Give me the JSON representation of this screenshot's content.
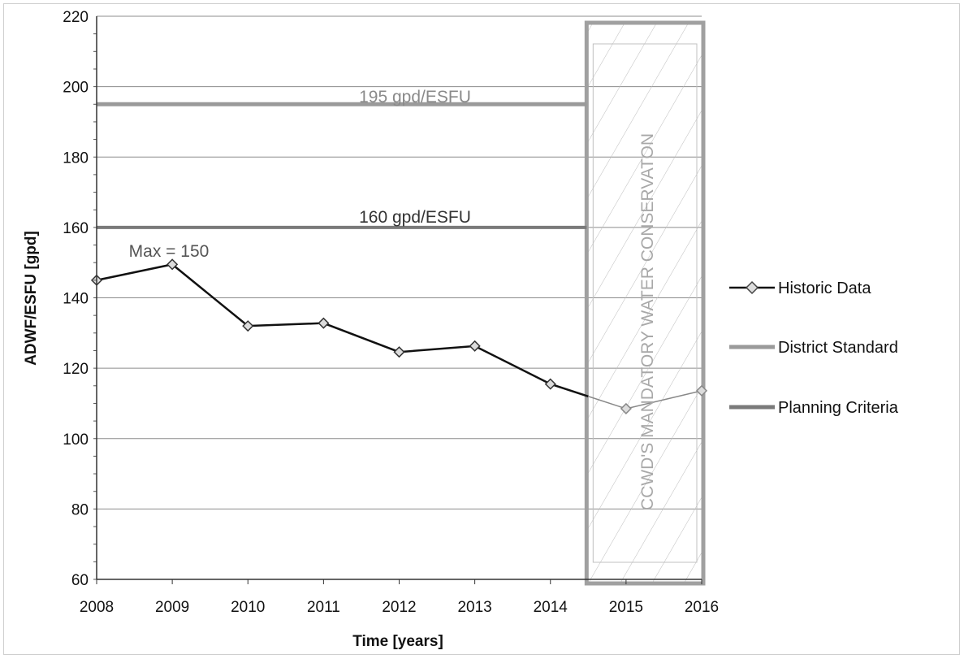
{
  "chart_data": {
    "type": "line",
    "title": "",
    "xlabel": "Time [years]",
    "ylabel": "ADWF/ESFU [gpd]",
    "x": [
      2008,
      2009,
      2010,
      2011,
      2012,
      2013,
      2014,
      2015,
      2016
    ],
    "x_ticks": [
      "2008",
      "2009",
      "2010",
      "2011",
      "2012",
      "2013",
      "2014",
      "2015",
      "2016"
    ],
    "ylim": [
      60,
      220
    ],
    "y_ticks": [
      "60",
      "80",
      "100",
      "120",
      "140",
      "160",
      "180",
      "200",
      "220"
    ],
    "grid": "horizontal",
    "legend_placement": "right",
    "series": [
      {
        "name": "Historic Data",
        "x": [
          2008,
          2009,
          2010,
          2011,
          2012,
          2013,
          2014,
          2015,
          2016
        ],
        "values": [
          145,
          149.5,
          132,
          132.8,
          124.6,
          126.3,
          115.5,
          108.5,
          113.6
        ],
        "color": "#111111",
        "marker": "diamond"
      },
      {
        "name": "District Standard",
        "value": 195,
        "color": "#9a9a9a",
        "label": "195 gpd/ESFU"
      },
      {
        "name": "Planning Criteria",
        "value": 160,
        "color": "#7a7a7a",
        "label": "160 gpd/ESFU"
      }
    ],
    "annotations": {
      "max_label": "Max = 150",
      "max_point": {
        "x": 2009,
        "y": 149.5
      },
      "conservation_region": {
        "x_start": 2014.5,
        "x_end": 2016,
        "label": "CCWD'S MANDATORY WATER CONSERVATON"
      }
    }
  }
}
